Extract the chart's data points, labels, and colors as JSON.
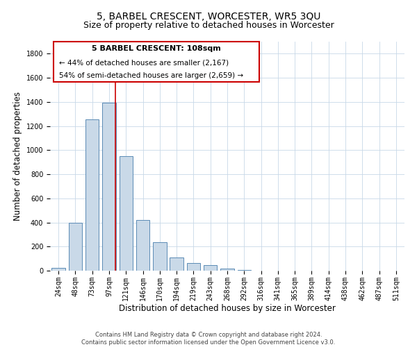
{
  "title": "5, BARBEL CRESCENT, WORCESTER, WR5 3QU",
  "subtitle": "Size of property relative to detached houses in Worcester",
  "xlabel": "Distribution of detached houses by size in Worcester",
  "ylabel": "Number of detached properties",
  "bar_labels": [
    "24sqm",
    "48sqm",
    "73sqm",
    "97sqm",
    "121sqm",
    "146sqm",
    "170sqm",
    "194sqm",
    "219sqm",
    "243sqm",
    "268sqm",
    "292sqm",
    "316sqm",
    "341sqm",
    "365sqm",
    "389sqm",
    "414sqm",
    "438sqm",
    "462sqm",
    "487sqm",
    "511sqm"
  ],
  "bar_values": [
    25,
    395,
    1255,
    1395,
    950,
    420,
    235,
    110,
    65,
    48,
    15,
    3,
    1,
    0,
    0,
    0,
    0,
    0,
    0,
    0,
    0
  ],
  "bar_color": "#c9d9e8",
  "bar_edge_color": "#5a8ab5",
  "property_line_x": 3.35,
  "property_line_color": "#cc0000",
  "ylim": [
    0,
    1900
  ],
  "yticks": [
    0,
    200,
    400,
    600,
    800,
    1000,
    1200,
    1400,
    1600,
    1800
  ],
  "annotation_title": "5 BARBEL CRESCENT: 108sqm",
  "annotation_line1": "← 44% of detached houses are smaller (2,167)",
  "annotation_line2": "54% of semi-detached houses are larger (2,659) →",
  "footer_line1": "Contains HM Land Registry data © Crown copyright and database right 2024.",
  "footer_line2": "Contains public sector information licensed under the Open Government Licence v3.0.",
  "title_fontsize": 10,
  "subtitle_fontsize": 9,
  "axis_label_fontsize": 8.5,
  "tick_fontsize": 7,
  "annotation_fontsize_title": 8,
  "annotation_fontsize_text": 7.5,
  "background_color": "#ffffff",
  "grid_color": "#c8d8e8"
}
